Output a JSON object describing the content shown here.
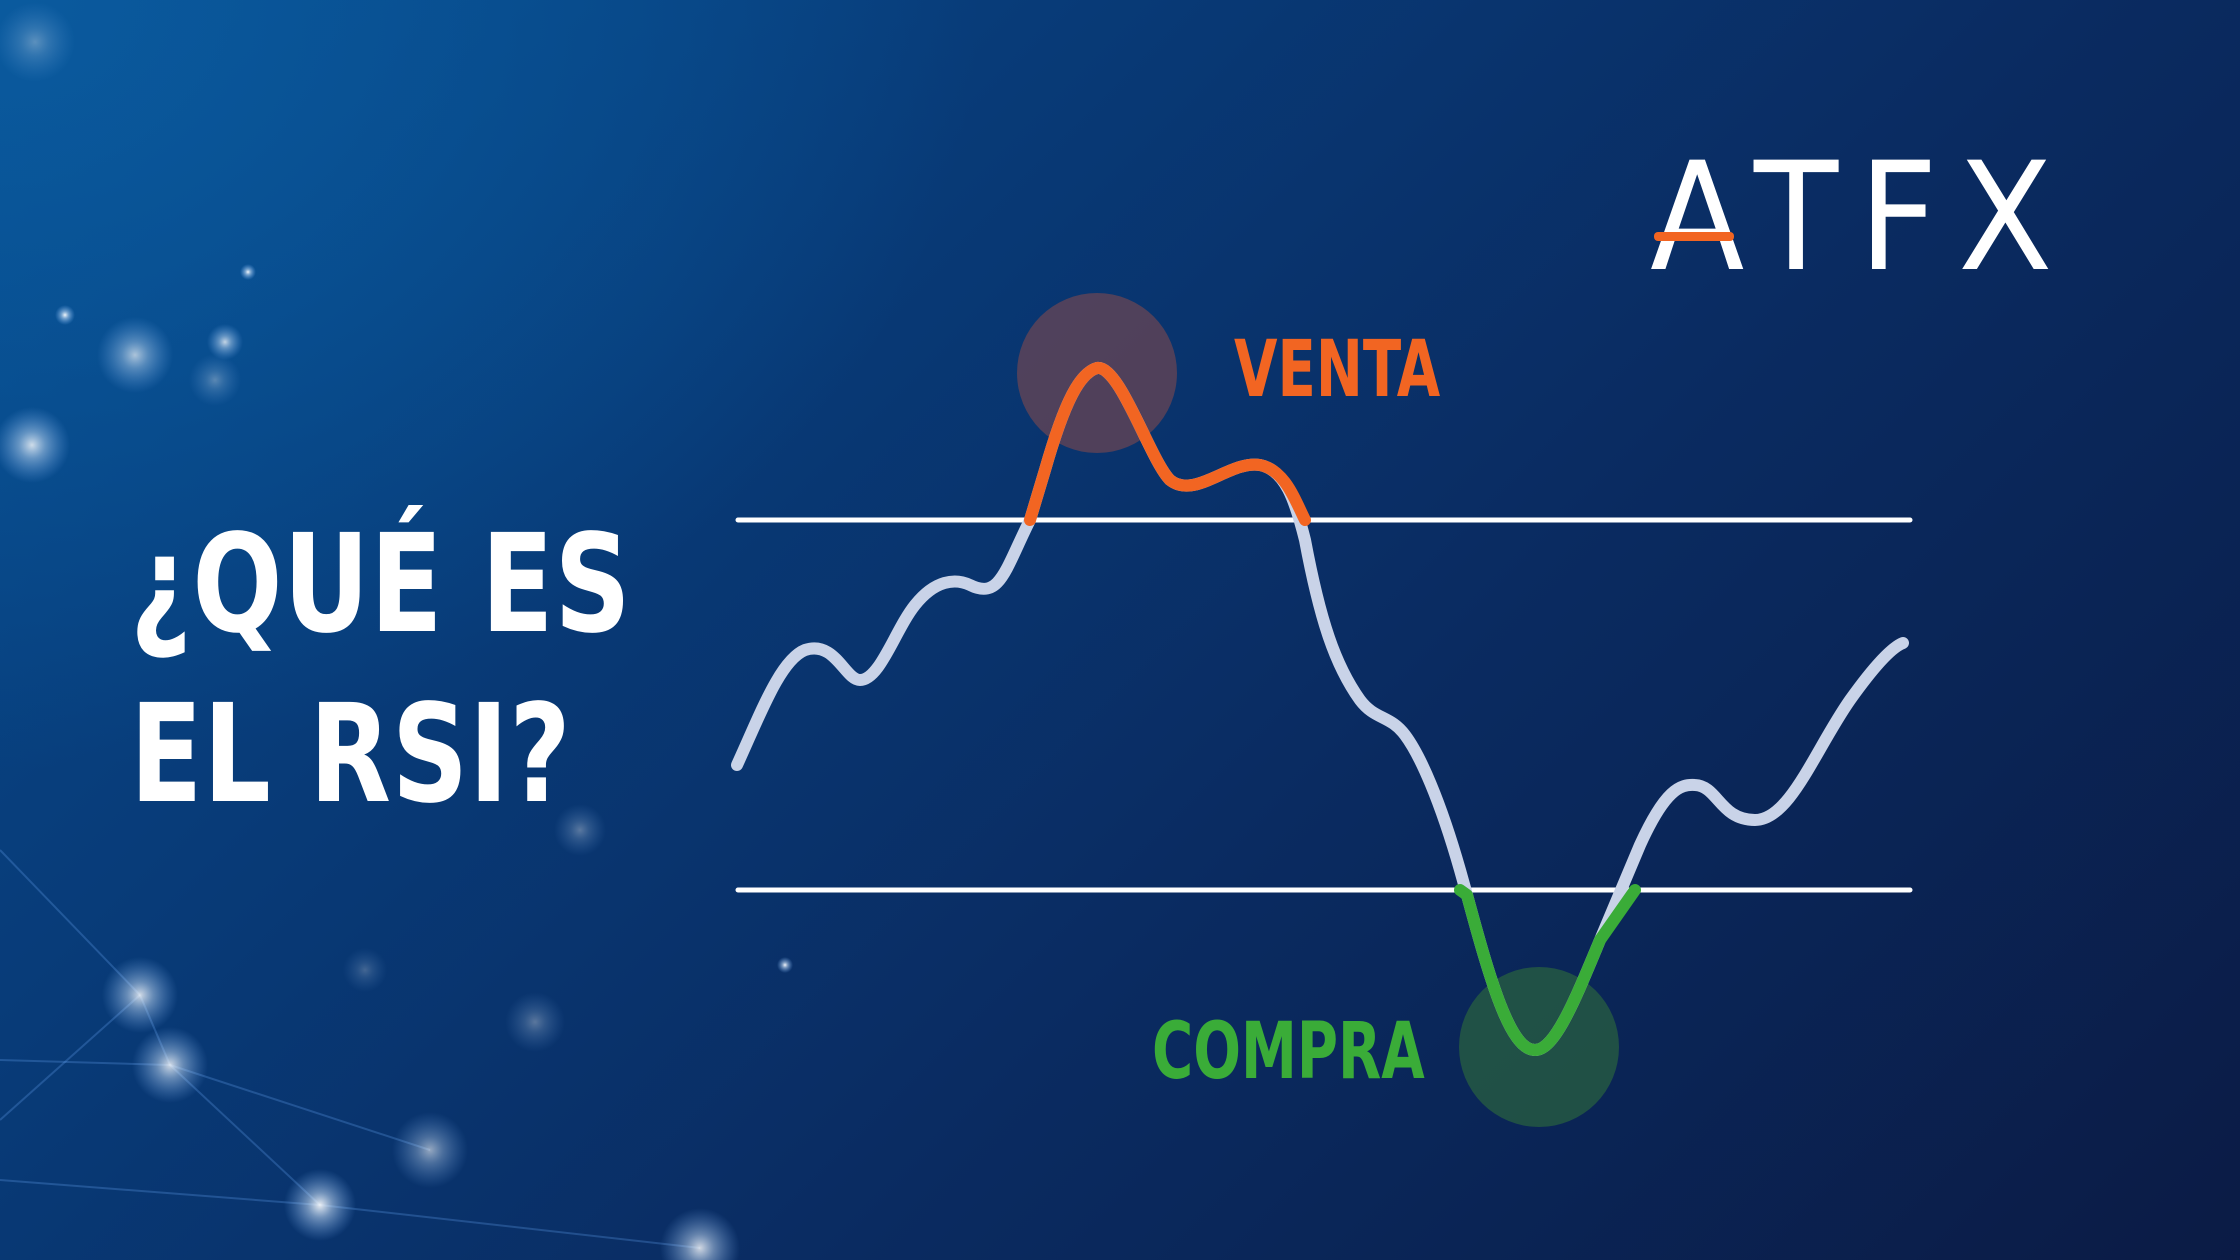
{
  "headline": {
    "line1": "¿QUÉ ES",
    "line2": "EL RSI?"
  },
  "brand": {
    "logo_text": "ATFX",
    "accent_color": "#f26522"
  },
  "signals": {
    "sell": {
      "label": "VENTA",
      "color": "#f26522"
    },
    "buy": {
      "label": "COMPRA",
      "color": "#3aac38"
    }
  },
  "colors": {
    "background_top": "#064a8c",
    "background_bottom": "#0b1b45",
    "line": "#c9d3e8",
    "threshold": "#ffffff"
  }
}
